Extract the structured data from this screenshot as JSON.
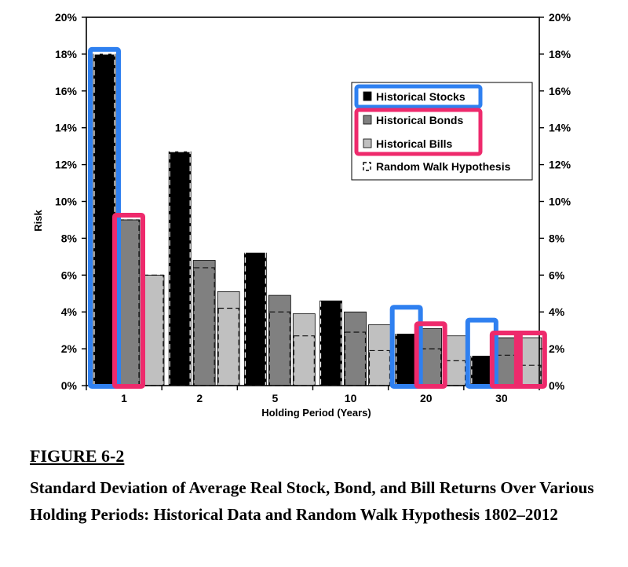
{
  "figure": {
    "number": "FIGURE 6-2",
    "title": "Standard Deviation of Average Real Stock, Bond, and Bill Returns Over Various Holding Periods: Historical Data and Random Walk Hypothesis 1802–2012"
  },
  "colors": {
    "stocks": "#000000",
    "bonds": "#808080",
    "bills": "#c0c0c0",
    "highlight_blue": "#2f80f0",
    "highlight_pink": "#ee2a6c"
  },
  "chart_data": {
    "type": "bar",
    "xlabel": "Holding Period (Years)",
    "ylabel": "Risk",
    "ylim": [
      0,
      20
    ],
    "yticks": [
      "0%",
      "2%",
      "4%",
      "6%",
      "8%",
      "10%",
      "12%",
      "14%",
      "16%",
      "18%",
      "20%"
    ],
    "categories": [
      "1",
      "2",
      "5",
      "10",
      "20",
      "30"
    ],
    "series": [
      {
        "name": "Historical Stocks",
        "values": [
          18.0,
          12.7,
          7.2,
          4.6,
          2.8,
          1.6
        ]
      },
      {
        "name": "Historical Bonds",
        "values": [
          9.0,
          6.8,
          4.9,
          4.0,
          3.1,
          2.6
        ]
      },
      {
        "name": "Historical Bills",
        "values": [
          6.0,
          5.1,
          3.9,
          3.3,
          2.7,
          2.6
        ]
      }
    ],
    "random_walk": {
      "name": "Random Walk Hypothesis",
      "values": [
        [
          18.0,
          9.0,
          6.0
        ],
        [
          12.7,
          6.4,
          4.2
        ],
        [
          8.0,
          4.0,
          2.7
        ],
        [
          5.7,
          2.9,
          1.9
        ],
        [
          4.0,
          2.0,
          1.35
        ],
        [
          3.3,
          1.65,
          1.1
        ]
      ]
    },
    "legend_position": "top-right",
    "grid": false,
    "highlights": [
      {
        "series": "Historical Stocks",
        "category": "1",
        "color": "blue"
      },
      {
        "series": "Historical Bonds",
        "category": "1",
        "color": "pink"
      },
      {
        "series": "Historical Stocks",
        "category": "20",
        "color": "blue"
      },
      {
        "series": "Historical Bonds",
        "category": "20",
        "color": "pink"
      },
      {
        "series": "Historical Stocks",
        "category": "30",
        "color": "blue"
      },
      {
        "series": "Historical Bonds",
        "category": "30",
        "color": "pink"
      },
      {
        "series": "Historical Bills",
        "category": "30",
        "color": "pink"
      }
    ],
    "legend_highlights": [
      {
        "items": [
          "Historical Stocks"
        ],
        "color": "blue"
      },
      {
        "items": [
          "Historical Bonds",
          "Historical Bills"
        ],
        "color": "pink"
      }
    ]
  }
}
